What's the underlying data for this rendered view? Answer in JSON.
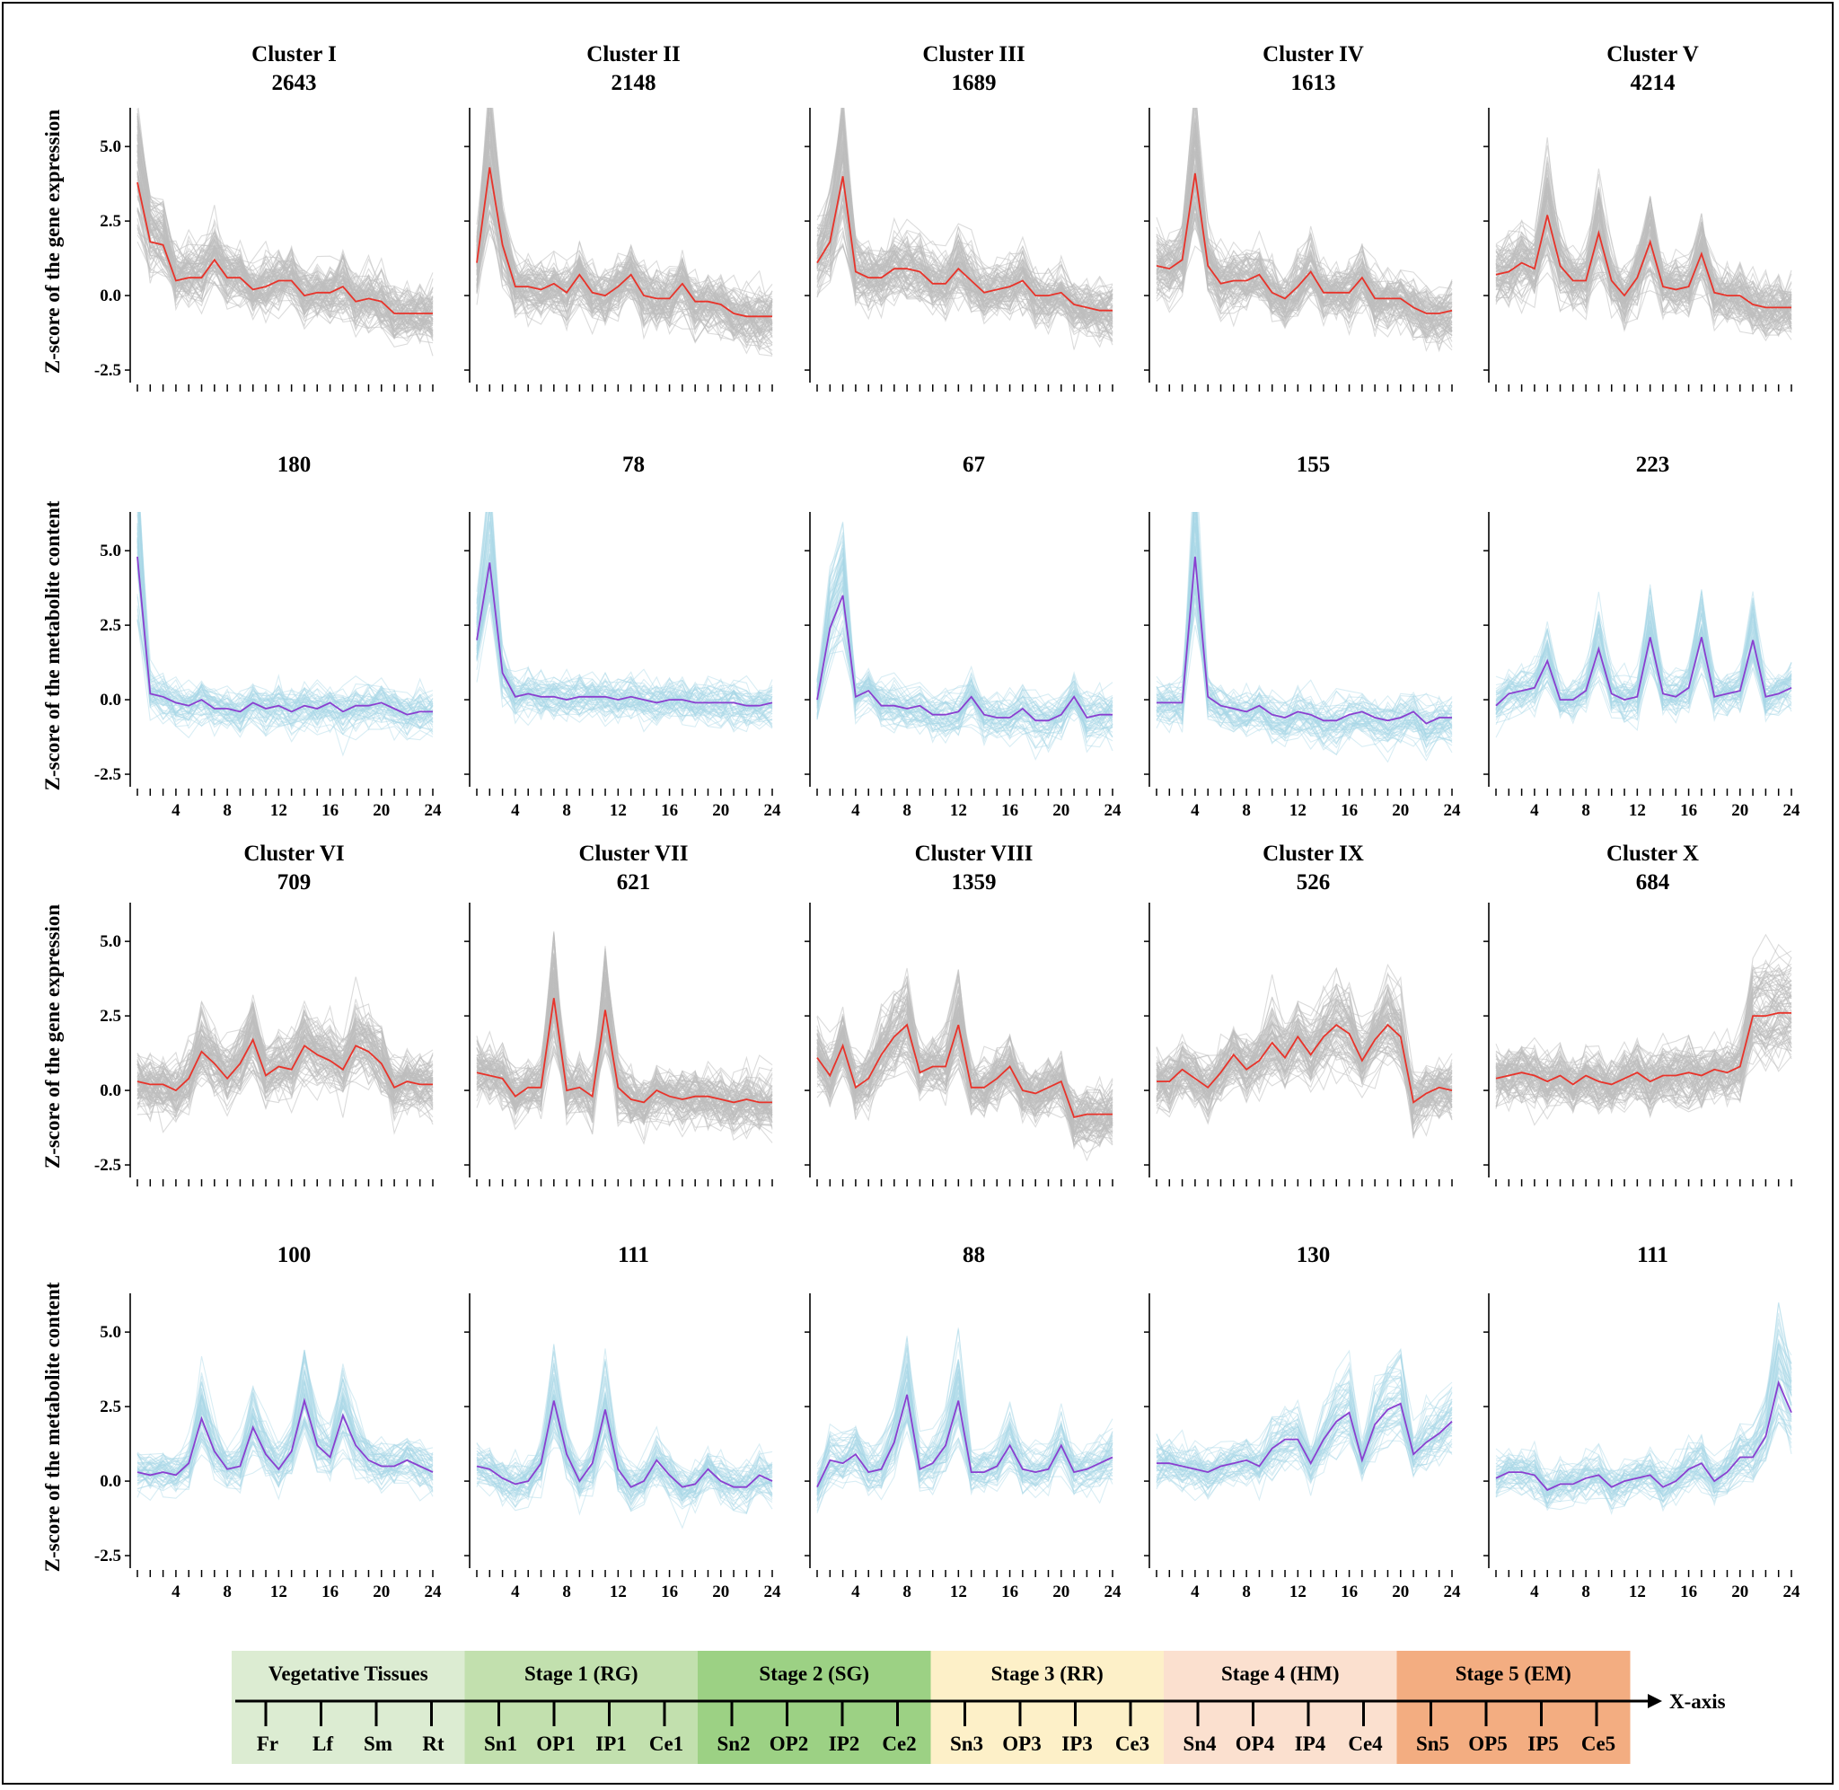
{
  "chart_data": {
    "type": "line",
    "x": [
      1,
      2,
      3,
      4,
      5,
      6,
      7,
      8,
      9,
      10,
      11,
      12,
      13,
      14,
      15,
      16,
      17,
      18,
      19,
      20,
      21,
      22,
      23,
      24
    ],
    "xticks": [
      4,
      8,
      12,
      16,
      20,
      24
    ],
    "yticks": [
      5.0,
      2.5,
      0.0,
      -2.5
    ],
    "ylim": [
      -2.8,
      6.3
    ],
    "colors": {
      "gene_bg": "#bdbdbd",
      "gene_mean": "#e8332a",
      "metab_bg": "#a9d8e6",
      "metab_mean": "#8a3fd0"
    },
    "rows": [
      {
        "ylabel": "Z-score of the gene expression",
        "kind": "gene",
        "panels": [
          {
            "cluster": "Cluster I",
            "count": "2643",
            "mean": [
              3.8,
              1.8,
              1.7,
              0.5,
              0.6,
              0.6,
              1.2,
              0.6,
              0.6,
              0.2,
              0.3,
              0.5,
              0.5,
              0.0,
              0.1,
              0.1,
              0.3,
              -0.2,
              -0.1,
              -0.2,
              -0.6,
              -0.6,
              -0.6,
              -0.6
            ]
          },
          {
            "cluster": "Cluster II",
            "count": "2148",
            "mean": [
              1.1,
              4.3,
              1.7,
              0.3,
              0.3,
              0.2,
              0.4,
              0.1,
              0.7,
              0.1,
              0.0,
              0.3,
              0.7,
              0.0,
              -0.1,
              -0.1,
              0.4,
              -0.2,
              -0.2,
              -0.3,
              -0.6,
              -0.7,
              -0.7,
              -0.7
            ]
          },
          {
            "cluster": "Cluster III",
            "count": "1689",
            "mean": [
              1.1,
              1.8,
              4.0,
              0.8,
              0.6,
              0.6,
              0.9,
              0.9,
              0.8,
              0.4,
              0.4,
              0.9,
              0.5,
              0.1,
              0.2,
              0.3,
              0.5,
              0.0,
              0.0,
              0.1,
              -0.3,
              -0.4,
              -0.5,
              -0.5
            ]
          },
          {
            "cluster": "Cluster IV",
            "count": "1613",
            "mean": [
              1.0,
              0.9,
              1.2,
              4.1,
              1.0,
              0.4,
              0.5,
              0.5,
              0.7,
              0.1,
              -0.1,
              0.3,
              0.8,
              0.1,
              0.1,
              0.1,
              0.6,
              -0.1,
              -0.1,
              -0.1,
              -0.4,
              -0.6,
              -0.6,
              -0.5
            ]
          },
          {
            "cluster": "Cluster V",
            "count": "4214",
            "mean": [
              0.7,
              0.8,
              1.1,
              0.9,
              2.7,
              1.0,
              0.5,
              0.5,
              2.1,
              0.5,
              0.0,
              0.6,
              1.8,
              0.3,
              0.2,
              0.3,
              1.4,
              0.1,
              0.0,
              0.0,
              -0.3,
              -0.4,
              -0.4,
              -0.4
            ]
          }
        ]
      },
      {
        "ylabel": "Z-score of the metabolite content",
        "kind": "metab",
        "panels": [
          {
            "cluster": "",
            "count": "180",
            "mean": [
              4.8,
              0.2,
              0.1,
              -0.1,
              -0.2,
              0.0,
              -0.3,
              -0.3,
              -0.4,
              -0.1,
              -0.3,
              -0.2,
              -0.4,
              -0.2,
              -0.3,
              -0.1,
              -0.4,
              -0.2,
              -0.2,
              -0.1,
              -0.3,
              -0.5,
              -0.4,
              -0.4
            ]
          },
          {
            "cluster": "",
            "count": "78",
            "mean": [
              2.0,
              4.6,
              0.9,
              0.1,
              0.2,
              0.1,
              0.1,
              0.0,
              0.1,
              0.1,
              0.1,
              0.0,
              0.1,
              0.0,
              -0.1,
              0.0,
              0.0,
              -0.1,
              -0.1,
              -0.1,
              -0.1,
              -0.2,
              -0.2,
              -0.1
            ]
          },
          {
            "cluster": "",
            "count": "67",
            "mean": [
              0.0,
              2.4,
              3.5,
              0.1,
              0.3,
              -0.2,
              -0.2,
              -0.3,
              -0.2,
              -0.5,
              -0.5,
              -0.4,
              0.1,
              -0.5,
              -0.6,
              -0.6,
              -0.3,
              -0.7,
              -0.7,
              -0.5,
              0.1,
              -0.6,
              -0.5,
              -0.5
            ]
          },
          {
            "cluster": "",
            "count": "155",
            "mean": [
              -0.1,
              -0.1,
              -0.1,
              4.8,
              0.1,
              -0.2,
              -0.3,
              -0.4,
              -0.2,
              -0.5,
              -0.6,
              -0.4,
              -0.5,
              -0.7,
              -0.7,
              -0.5,
              -0.4,
              -0.6,
              -0.7,
              -0.6,
              -0.4,
              -0.8,
              -0.6,
              -0.6
            ]
          },
          {
            "cluster": "",
            "count": "223",
            "mean": [
              -0.2,
              0.2,
              0.3,
              0.4,
              1.3,
              0.0,
              0.0,
              0.3,
              1.7,
              0.2,
              0.0,
              0.1,
              2.1,
              0.2,
              0.1,
              0.4,
              2.1,
              0.1,
              0.2,
              0.3,
              2.0,
              0.1,
              0.2,
              0.4
            ]
          }
        ]
      },
      {
        "ylabel": "Z-score of the gene expression",
        "kind": "gene",
        "panels": [
          {
            "cluster": "Cluster VI",
            "count": "709",
            "mean": [
              0.3,
              0.2,
              0.2,
              0.0,
              0.4,
              1.3,
              0.9,
              0.4,
              0.9,
              1.7,
              0.5,
              0.8,
              0.7,
              1.5,
              1.2,
              1.0,
              0.7,
              1.5,
              1.3,
              0.9,
              0.1,
              0.3,
              0.2,
              0.2
            ]
          },
          {
            "cluster": "Cluster VII",
            "count": "621",
            "mean": [
              0.6,
              0.5,
              0.4,
              -0.2,
              0.1,
              0.1,
              3.1,
              0.0,
              0.1,
              -0.2,
              2.7,
              0.1,
              -0.3,
              -0.4,
              0.0,
              -0.2,
              -0.3,
              -0.2,
              -0.2,
              -0.3,
              -0.4,
              -0.3,
              -0.4,
              -0.4
            ]
          },
          {
            "cluster": "Cluster VIII",
            "count": "1359",
            "mean": [
              1.1,
              0.5,
              1.5,
              0.1,
              0.4,
              1.2,
              1.8,
              2.2,
              0.6,
              0.8,
              0.8,
              2.2,
              0.1,
              0.1,
              0.4,
              0.8,
              0.0,
              -0.1,
              0.1,
              0.3,
              -0.9,
              -0.8,
              -0.8,
              -0.8
            ]
          },
          {
            "cluster": "Cluster IX",
            "count": "526",
            "mean": [
              0.3,
              0.3,
              0.7,
              0.4,
              0.1,
              0.6,
              1.2,
              0.7,
              1.0,
              1.6,
              1.1,
              1.8,
              1.2,
              1.8,
              2.2,
              1.9,
              1.0,
              1.7,
              2.2,
              1.8,
              -0.4,
              -0.1,
              0.1,
              0.0
            ]
          },
          {
            "cluster": "Cluster X",
            "count": "684",
            "mean": [
              0.4,
              0.5,
              0.6,
              0.5,
              0.3,
              0.5,
              0.2,
              0.5,
              0.3,
              0.2,
              0.4,
              0.6,
              0.3,
              0.5,
              0.5,
              0.6,
              0.5,
              0.7,
              0.6,
              0.8,
              2.5,
              2.5,
              2.6,
              2.6
            ]
          }
        ]
      },
      {
        "ylabel": "Z-score of the metabolite content",
        "kind": "metab",
        "panels": [
          {
            "cluster": "",
            "count": "100",
            "mean": [
              0.3,
              0.2,
              0.3,
              0.2,
              0.6,
              2.1,
              1.0,
              0.4,
              0.5,
              1.8,
              0.9,
              0.4,
              1.0,
              2.7,
              1.2,
              0.8,
              2.2,
              1.2,
              0.7,
              0.5,
              0.5,
              0.7,
              0.5,
              0.3
            ]
          },
          {
            "cluster": "",
            "count": "111",
            "mean": [
              0.5,
              0.4,
              0.1,
              -0.1,
              0.0,
              0.6,
              2.7,
              0.9,
              0.0,
              0.6,
              2.4,
              0.4,
              -0.2,
              0.0,
              0.7,
              0.2,
              -0.2,
              -0.1,
              0.4,
              0.0,
              -0.2,
              -0.2,
              0.2,
              0.0
            ]
          },
          {
            "cluster": "",
            "count": "88",
            "mean": [
              -0.2,
              0.7,
              0.6,
              0.9,
              0.3,
              0.4,
              1.3,
              2.9,
              0.4,
              0.6,
              1.2,
              2.7,
              0.3,
              0.3,
              0.5,
              1.2,
              0.4,
              0.3,
              0.4,
              1.2,
              0.3,
              0.4,
              0.6,
              0.8
            ]
          },
          {
            "cluster": "",
            "count": "130",
            "mean": [
              0.6,
              0.6,
              0.5,
              0.4,
              0.3,
              0.5,
              0.6,
              0.7,
              0.5,
              1.1,
              1.4,
              1.4,
              0.6,
              1.4,
              2.0,
              2.3,
              0.7,
              1.9,
              2.4,
              2.6,
              0.9,
              1.3,
              1.6,
              2.0
            ]
          },
          {
            "cluster": "",
            "count": "111",
            "mean": [
              0.1,
              0.3,
              0.3,
              0.2,
              -0.3,
              -0.1,
              -0.1,
              0.1,
              0.2,
              -0.2,
              0.0,
              0.1,
              0.2,
              -0.2,
              0.0,
              0.4,
              0.6,
              0.0,
              0.3,
              0.8,
              0.8,
              1.5,
              3.3,
              2.3
            ]
          }
        ]
      }
    ]
  },
  "legend": {
    "stages": [
      {
        "label": "Vegetative Tissues",
        "color": "#dcecd2",
        "samples": [
          "Fr",
          "Lf",
          "Sm",
          "Rt"
        ]
      },
      {
        "label": "Stage 1 (RG)",
        "color": "#c2e0ae",
        "samples": [
          "Sn1",
          "OP1",
          "IP1",
          "Ce1"
        ]
      },
      {
        "label": "Stage 2 (SG)",
        "color": "#9cd184",
        "samples": [
          "Sn2",
          "OP2",
          "IP2",
          "Ce2"
        ]
      },
      {
        "label": "Stage 3 (RR)",
        "color": "#fdf0c8",
        "samples": [
          "Sn3",
          "OP3",
          "IP3",
          "Ce3"
        ]
      },
      {
        "label": "Stage 4 (HM)",
        "color": "#fbe0cf",
        "samples": [
          "Sn4",
          "OP4",
          "IP4",
          "Ce4"
        ]
      },
      {
        "label": "Stage 5 (EM)",
        "color": "#f3ad81",
        "samples": [
          "Sn5",
          "OP5",
          "IP5",
          "Ce5"
        ]
      }
    ],
    "axis_label": "X-axis"
  }
}
